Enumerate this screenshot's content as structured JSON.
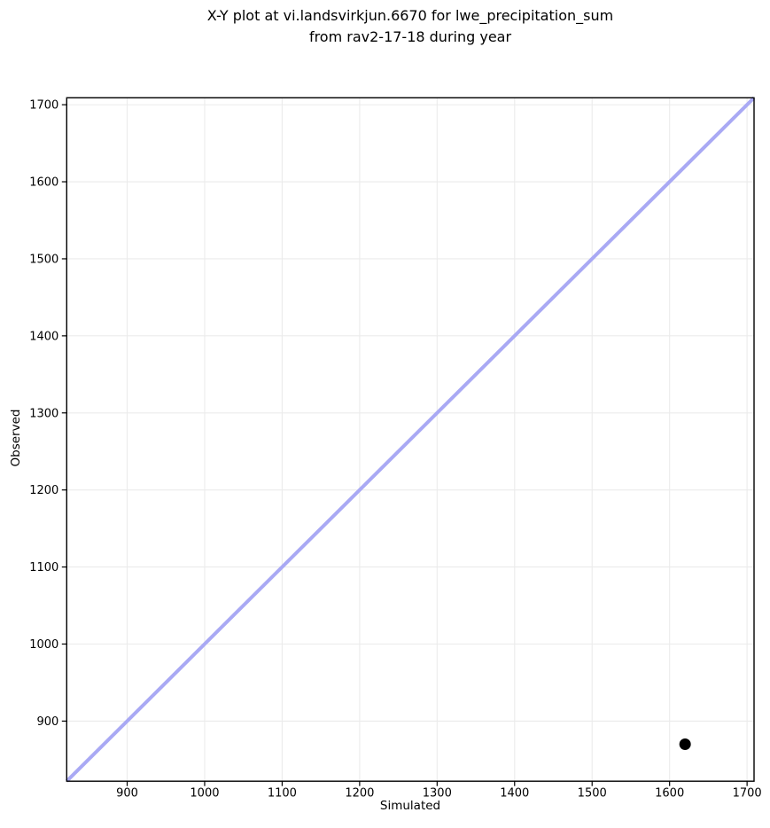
{
  "chart_data": {
    "type": "scatter",
    "title": "X-Y plot at vi.landsvirkjun.6670 for lwe_precipitation_sum\nfrom rav2-17-18 during year",
    "xlabel": "Simulated",
    "ylabel": "Observed",
    "xlim": [
      822,
      1709
    ],
    "ylim": [
      822,
      1709
    ],
    "x_ticks": [
      900,
      1000,
      1100,
      1200,
      1300,
      1400,
      1500,
      1600,
      1700
    ],
    "y_ticks": [
      900,
      1000,
      1100,
      1200,
      1300,
      1400,
      1500,
      1600,
      1700
    ],
    "grid": true,
    "legend_position": "none",
    "series": [
      {
        "name": "identity-line",
        "type": "line",
        "color": "#a9a9f4",
        "line_width": 4,
        "points": [
          {
            "x": 822,
            "y": 822
          },
          {
            "x": 1709,
            "y": 1709
          }
        ]
      },
      {
        "name": "observed-vs-simulated",
        "type": "scatter",
        "marker": "circle",
        "color": "#000000",
        "marker_radius": 6.5,
        "points": [
          {
            "x": 1620,
            "y": 870
          }
        ]
      }
    ],
    "colors": {
      "background": "#ffffff",
      "grid": "#ebebeb",
      "spine": "#000000",
      "text": "#000000"
    }
  }
}
